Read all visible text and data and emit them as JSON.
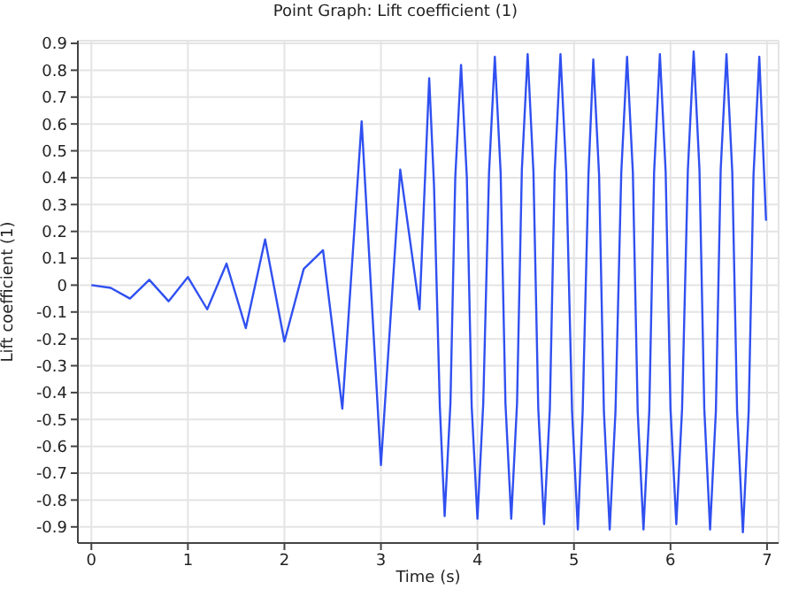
{
  "chart_data": {
    "type": "line",
    "title": "Point Graph: Lift coefficient (1)",
    "xlabel": "Time (s)",
    "ylabel": "Lift coefficient (1)",
    "x": [
      0,
      0.2,
      0.4,
      0.6,
      0.8,
      1.0,
      1.2,
      1.4,
      1.6,
      1.8,
      2.0,
      2.2,
      2.4,
      2.6,
      2.8,
      3.0,
      3.2,
      3.4,
      3.5,
      3.55,
      3.61,
      3.66,
      3.72,
      3.77,
      3.83,
      3.89,
      3.94,
      4.0,
      4.06,
      4.12,
      4.18,
      4.24,
      4.29,
      4.35,
      4.41,
      4.46,
      4.52,
      4.58,
      4.63,
      4.69,
      4.75,
      4.8,
      4.86,
      4.92,
      4.98,
      5.04,
      5.09,
      5.15,
      5.2,
      5.26,
      5.31,
      5.37,
      5.43,
      5.49,
      5.55,
      5.61,
      5.66,
      5.72,
      5.78,
      5.83,
      5.89,
      5.95,
      6.0,
      6.06,
      6.12,
      6.18,
      6.24,
      6.3,
      6.35,
      6.41,
      6.47,
      6.52,
      6.58,
      6.64,
      6.69,
      6.75,
      6.81,
      6.86,
      6.92,
      6.99
    ],
    "series": [
      {
        "color": "#3050f0",
        "values": [
          0,
          -0.01,
          -0.05,
          0.02,
          -0.06,
          0.03,
          -0.09,
          0.08,
          -0.16,
          0.17,
          -0.21,
          0.06,
          0.13,
          -0.46,
          0.61,
          -0.67,
          0.43,
          -0.09,
          0.77,
          0.37,
          -0.45,
          -0.86,
          -0.44,
          0.4,
          0.82,
          0.4,
          -0.45,
          -0.87,
          -0.44,
          0.42,
          0.85,
          0.42,
          -0.44,
          -0.87,
          -0.44,
          0.43,
          0.86,
          0.42,
          -0.46,
          -0.89,
          -0.46,
          0.42,
          0.86,
          0.42,
          -0.47,
          -0.91,
          -0.47,
          0.41,
          0.84,
          0.41,
          -0.47,
          -0.91,
          -0.47,
          0.42,
          0.85,
          0.42,
          -0.47,
          -0.91,
          -0.47,
          0.42,
          0.86,
          0.42,
          -0.46,
          -0.89,
          -0.46,
          0.43,
          0.87,
          0.43,
          -0.46,
          -0.91,
          -0.47,
          0.43,
          0.86,
          0.42,
          -0.47,
          -0.92,
          -0.47,
          0.41,
          0.85,
          0.24
        ]
      }
    ],
    "xlim": [
      -0.14,
      7.12
    ],
    "xticks": [
      0,
      1,
      2,
      3,
      4,
      5,
      6,
      7
    ],
    "ylim": [
      -0.96,
      0.91
    ],
    "yticks": [
      -0.9,
      -0.8,
      -0.7,
      -0.6,
      -0.5,
      -0.4,
      -0.3,
      -0.2,
      -0.1,
      0,
      0.1,
      0.2,
      0.3,
      0.4,
      0.5,
      0.6,
      0.7,
      0.8,
      0.9
    ],
    "grid": true,
    "marker": "none",
    "line_style": "solid"
  }
}
